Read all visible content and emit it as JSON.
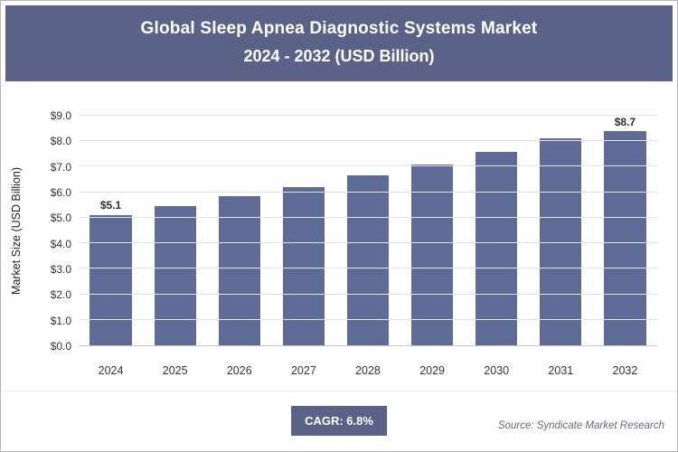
{
  "header": {
    "title_line1": "Global Sleep Apnea Diagnostic Systems Market",
    "title_line2": "2024 - 2032 (USD Billion)"
  },
  "chart_data": {
    "type": "bar",
    "title": "Global Sleep Apnea Diagnostic Systems Market 2024 - 2032 (USD Billion)",
    "categories": [
      "2024",
      "2025",
      "2026",
      "2027",
      "2028",
      "2029",
      "2030",
      "2031",
      "2032"
    ],
    "values": [
      5.1,
      5.45,
      5.85,
      6.2,
      6.65,
      7.1,
      7.6,
      8.1,
      8.7
    ],
    "value_labels": [
      "$5.1",
      "",
      "",
      "",
      "",
      "",
      "",
      "",
      "$8.7"
    ],
    "xlabel": "",
    "ylabel": "Market Size (USD Billion)",
    "ylim": [
      0,
      9
    ],
    "ytick_step": 1.0,
    "ytick_labels": [
      "$0.0",
      "$1.0",
      "$2.0",
      "$3.0",
      "$4.0",
      "$5.0",
      "$6.0",
      "$7.0",
      "$8.0",
      "$9.0"
    ],
    "grid": true,
    "legend": "none",
    "bar_color": "#5d6b96"
  },
  "footer": {
    "cagr_label": "CAGR: 6.8%",
    "source": "Source: Syndicate Market Research"
  },
  "colors": {
    "header_bg": "#5a6387",
    "bar": "#5d6b96",
    "badge_bg": "#5a6387"
  }
}
